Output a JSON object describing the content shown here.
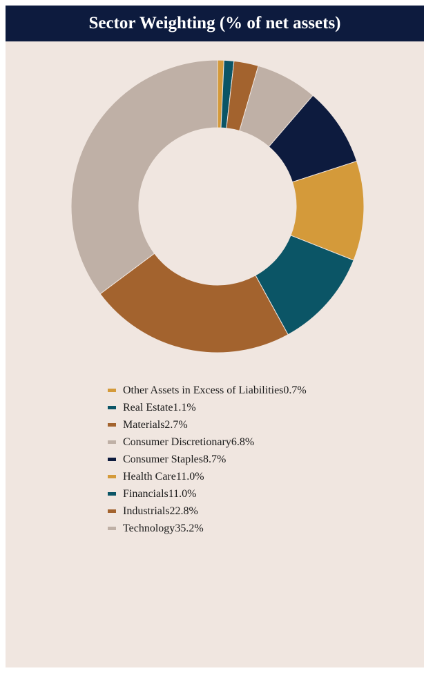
{
  "chart_data": {
    "type": "pie",
    "donut": true,
    "title": "Sector Weighting (% of net assets)",
    "unit": "%",
    "slices": [
      {
        "label": "Other Assets in Excess of Liabilities",
        "value": 0.7,
        "display": "0.7%",
        "color": "#d49a3a"
      },
      {
        "label": "Real Estate",
        "value": 1.1,
        "display": "1.1%",
        "color": "#0b5566"
      },
      {
        "label": "Materials",
        "value": 2.7,
        "display": "2.7%",
        "color": "#a3632e"
      },
      {
        "label": "Consumer Discretionary",
        "value": 6.8,
        "display": "6.8%",
        "color": "#bfb0a6"
      },
      {
        "label": "Consumer Staples",
        "value": 8.7,
        "display": "8.7%",
        "color": "#0d1b3e"
      },
      {
        "label": "Health Care",
        "value": 11.0,
        "display": "11.0%",
        "color": "#d49a3a"
      },
      {
        "label": "Financials",
        "value": 11.0,
        "display": "11.0%",
        "color": "#0b5566"
      },
      {
        "label": "Industrials",
        "value": 22.8,
        "display": "22.8%",
        "color": "#a3632e"
      },
      {
        "label": "Technology",
        "value": 35.2,
        "display": "35.2%",
        "color": "#bfb0a6"
      }
    ],
    "start": "top",
    "direction": "clockwise",
    "legend": "bottom"
  }
}
